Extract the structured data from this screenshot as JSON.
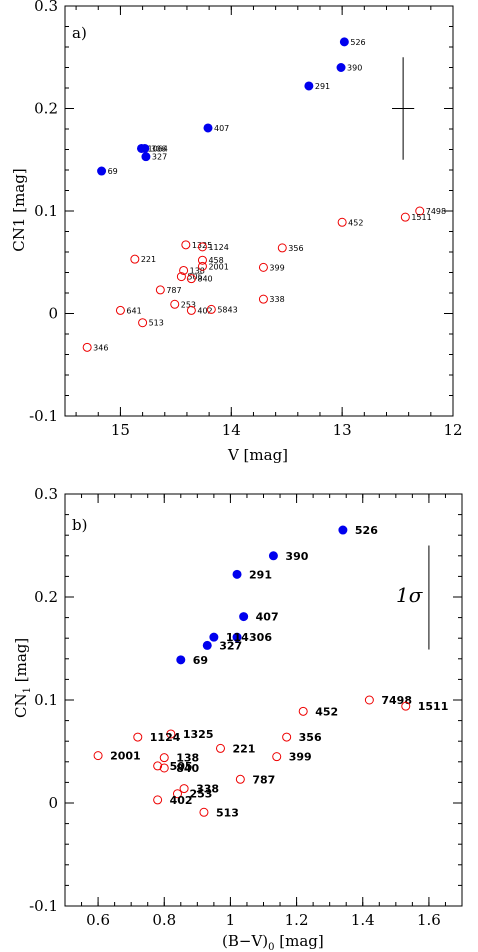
{
  "chart_data": [
    {
      "type": "scatter",
      "panel_label": "a)",
      "xlabel": "V [mag]",
      "ylabel": "CN1 [mag]",
      "xlim": [
        15.5,
        12
      ],
      "ylim": [
        -0.1,
        0.3
      ],
      "x_ticks": [
        "15",
        "14",
        "13",
        "12"
      ],
      "y_ticks": [
        "-0.1",
        "0",
        "0.1",
        "0.2",
        "0.3"
      ],
      "error_bar": {
        "x": 12.45,
        "y": 0.2,
        "dx": 0.1,
        "dy": 0.05
      },
      "series": [
        {
          "marker": "filled-circle",
          "color": "#0000ee",
          "points": [
            {
              "label": "526",
              "x": 12.98,
              "y": 0.265
            },
            {
              "label": "390",
              "x": 13.01,
              "y": 0.24
            },
            {
              "label": "291",
              "x": 13.3,
              "y": 0.222
            },
            {
              "label": "407",
              "x": 14.21,
              "y": 0.181
            },
            {
              "label": "1064",
              "x": 14.81,
              "y": 0.161
            },
            {
              "label": "306",
              "x": 14.78,
              "y": 0.161
            },
            {
              "label": "327",
              "x": 14.77,
              "y": 0.153
            },
            {
              "label": "69",
              "x": 15.17,
              "y": 0.139
            }
          ]
        },
        {
          "marker": "open-circle",
          "color": "#ee0000",
          "points": [
            {
              "label": "7498",
              "x": 12.3,
              "y": 0.1
            },
            {
              "label": "1511",
              "x": 12.43,
              "y": 0.094
            },
            {
              "label": "452",
              "x": 13.0,
              "y": 0.089
            },
            {
              "label": "356",
              "x": 13.54,
              "y": 0.064
            },
            {
              "label": "399",
              "x": 13.71,
              "y": 0.045
            },
            {
              "label": "338",
              "x": 13.71,
              "y": 0.014
            },
            {
              "label": "1325",
              "x": 14.41,
              "y": 0.067
            },
            {
              "label": "1124",
              "x": 14.26,
              "y": 0.065
            },
            {
              "label": "458",
              "x": 14.26,
              "y": 0.052
            },
            {
              "label": "138",
              "x": 14.43,
              "y": 0.042
            },
            {
              "label": "2001",
              "x": 14.26,
              "y": 0.046
            },
            {
              "label": "505",
              "x": 14.45,
              "y": 0.036
            },
            {
              "label": "840",
              "x": 14.36,
              "y": 0.034
            },
            {
              "label": "221",
              "x": 14.87,
              "y": 0.053
            },
            {
              "label": "787",
              "x": 14.64,
              "y": 0.023
            },
            {
              "label": "253",
              "x": 14.51,
              "y": 0.009
            },
            {
              "label": "402",
              "x": 14.36,
              "y": 0.003
            },
            {
              "label": "5843",
              "x": 14.18,
              "y": 0.004
            },
            {
              "label": "641",
              "x": 15.0,
              "y": 0.003
            },
            {
              "label": "513",
              "x": 14.8,
              "y": -0.009
            },
            {
              "label": "346",
              "x": 15.3,
              "y": -0.033
            }
          ]
        }
      ]
    },
    {
      "type": "scatter",
      "panel_label": "b)",
      "xlabel": "(B−V)",
      "xlabel_sub": "0",
      "xlabel_unit": " [mag]",
      "ylabel": "CN",
      "ylabel_sub": "1",
      "ylabel_unit": " [mag]",
      "xlim": [
        0.5,
        1.7
      ],
      "ylim": [
        -0.1,
        0.3
      ],
      "x_ticks": [
        "0.6",
        "0.8",
        "1",
        "1.2",
        "1.4",
        "1.6"
      ],
      "y_ticks": [
        "-0.1",
        "0",
        "0.1",
        "0.2",
        "0.3"
      ],
      "sigma_label": "1σ",
      "sigma_bar": {
        "x": 1.6,
        "y_low": 0.149,
        "y_high": 0.25
      },
      "series": [
        {
          "marker": "filled-circle",
          "color": "#0000ee",
          "points": [
            {
              "label": "526",
              "x": 1.34,
              "y": 0.265
            },
            {
              "label": "390",
              "x": 1.13,
              "y": 0.24
            },
            {
              "label": "291",
              "x": 1.02,
              "y": 0.222
            },
            {
              "label": "407",
              "x": 1.04,
              "y": 0.181
            },
            {
              "label": "306",
              "x": 1.02,
              "y": 0.161
            },
            {
              "label": "114",
              "x": 0.95,
              "y": 0.161
            },
            {
              "label": "327",
              "x": 0.93,
              "y": 0.153
            },
            {
              "label": "69",
              "x": 0.85,
              "y": 0.139
            }
          ]
        },
        {
          "marker": "open-circle",
          "color": "#ee0000",
          "points": [
            {
              "label": "7498",
              "x": 1.42,
              "y": 0.1
            },
            {
              "label": "1511",
              "x": 1.53,
              "y": 0.094
            },
            {
              "label": "452",
              "x": 1.22,
              "y": 0.089
            },
            {
              "label": "356",
              "x": 1.17,
              "y": 0.064
            },
            {
              "label": "399",
              "x": 1.14,
              "y": 0.045
            },
            {
              "label": "221",
              "x": 0.97,
              "y": 0.053
            },
            {
              "label": "787",
              "x": 1.03,
              "y": 0.023
            },
            {
              "label": "1325",
              "x": 0.82,
              "y": 0.067
            },
            {
              "label": "1124",
              "x": 0.72,
              "y": 0.064
            },
            {
              "label": "2001",
              "x": 0.6,
              "y": 0.046
            },
            {
              "label": "138",
              "x": 0.8,
              "y": 0.044
            },
            {
              "label": "505",
              "x": 0.78,
              "y": 0.036
            },
            {
              "label": "840",
              "x": 0.8,
              "y": 0.034
            },
            {
              "label": "338",
              "x": 0.86,
              "y": 0.014
            },
            {
              "label": "253",
              "x": 0.84,
              "y": 0.009
            },
            {
              "label": "402",
              "x": 0.78,
              "y": 0.003
            },
            {
              "label": "513",
              "x": 0.92,
              "y": -0.009
            }
          ]
        }
      ]
    }
  ]
}
